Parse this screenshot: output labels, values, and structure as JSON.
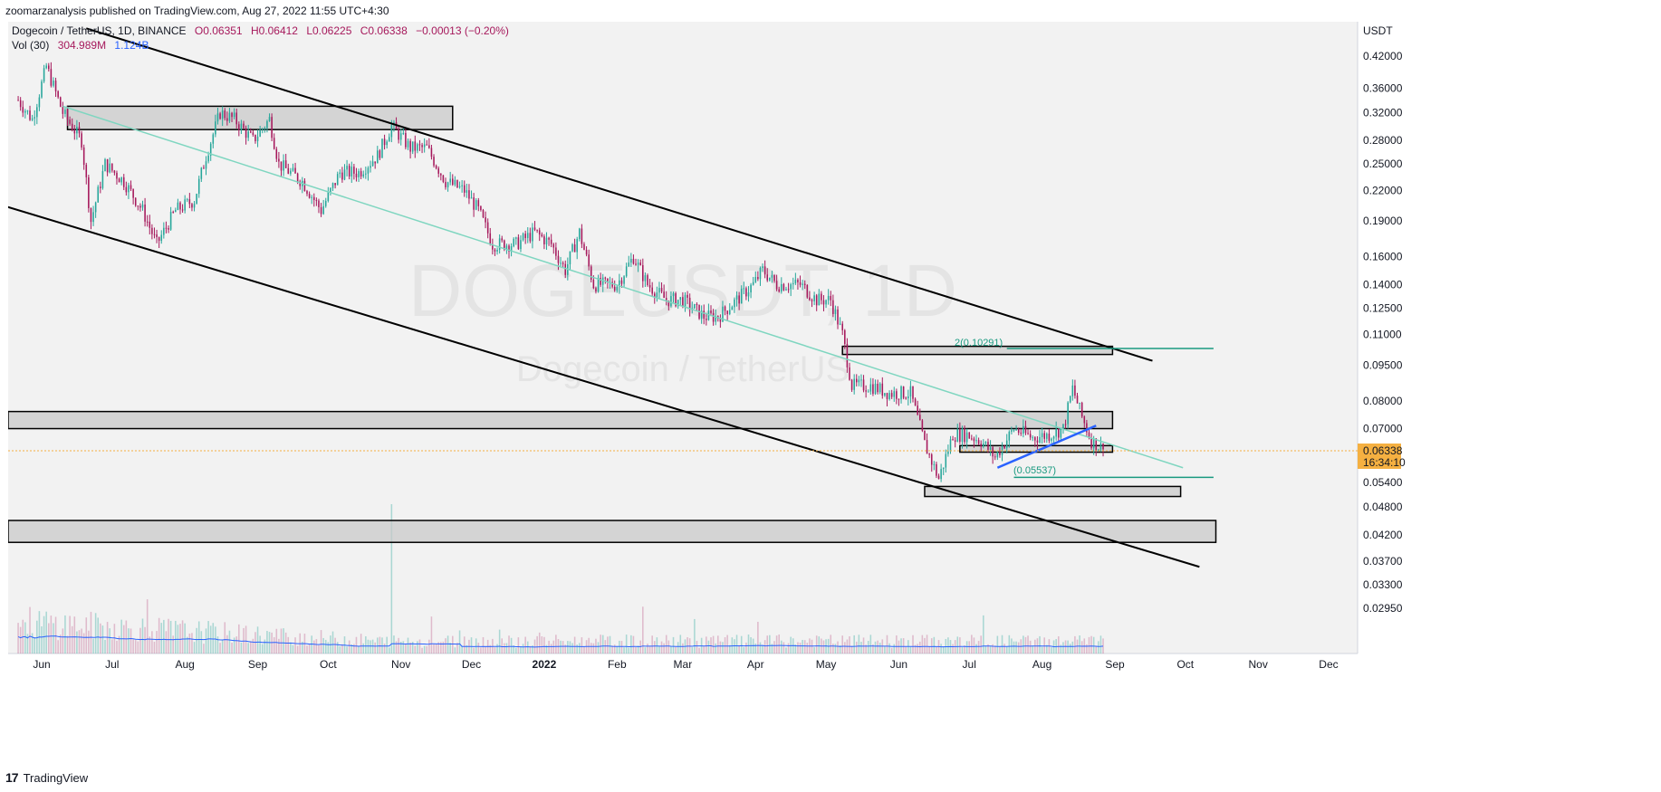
{
  "header": {
    "published_by": "zoomarzanalysis published on TradingView.com, Aug 27, 2022 11:55 UTC+4:30"
  },
  "legend": {
    "symbol": "Dogecoin / TetherUS, 1D, BINANCE",
    "o": "O0.06351",
    "h": "H0.06412",
    "l": "L0.06225",
    "c": "C0.06338",
    "chg": "−0.00013 (−0.20%)",
    "vol_label": "Vol (30)",
    "vol_value": "304.989M",
    "vol_ma": "1.124B"
  },
  "watermark": {
    "line1": "DOGEUSDT, 1D",
    "line2": "Dogecoin / TetherUS"
  },
  "price_axis": {
    "unit": "USDT",
    "last_price": "0.06338",
    "countdown": "16:34:10"
  },
  "annotations": {
    "target": "2(0.10291)",
    "support": "(0.05537)"
  },
  "footer": {
    "brand": "TradingView",
    "logo": "17"
  },
  "colors": {
    "up": "#26a69a",
    "down": "#a6195c",
    "channel": "#000000",
    "midline": "#7fd6c0",
    "trend_blue": "#2962ff",
    "vol_ma": "#2962ff",
    "target_line": "#1a9a80",
    "price_badge": "#f5b041"
  },
  "chart_data": {
    "type": "candlestick",
    "symbol": "DOGEUSDT",
    "timeframe": "1D",
    "y_scale": "log",
    "y_ticks": [
      "0.42000",
      "0.36000",
      "0.32000",
      "0.28000",
      "0.25000",
      "0.22000",
      "0.19000",
      "0.16000",
      "0.14000",
      "0.12500",
      "0.11000",
      "0.09500",
      "0.08000",
      "0.07000",
      "0.05400",
      "0.04800",
      "0.04200",
      "0.03700",
      "0.03300",
      "0.02950"
    ],
    "x_ticks": [
      "Jun",
      "Jul",
      "Aug",
      "Sep",
      "Oct",
      "Nov",
      "Dec",
      "2022",
      "Feb",
      "Mar",
      "Apr",
      "May",
      "Jun",
      "Jul",
      "Aug",
      "Sep",
      "Oct",
      "Nov",
      "Dec"
    ],
    "ylim": [
      0.0275,
      0.48
    ],
    "price_path": [
      [
        "2021-05-22",
        0.34
      ],
      [
        "2021-05-28",
        0.31
      ],
      [
        "2021-06-03",
        0.4
      ],
      [
        "2021-06-10",
        0.32
      ],
      [
        "2021-06-18",
        0.28
      ],
      [
        "2021-06-22",
        0.19
      ],
      [
        "2021-06-28",
        0.25
      ],
      [
        "2021-07-06",
        0.23
      ],
      [
        "2021-07-14",
        0.2
      ],
      [
        "2021-07-20",
        0.17
      ],
      [
        "2021-07-28",
        0.2
      ],
      [
        "2021-08-05",
        0.21
      ],
      [
        "2021-08-10",
        0.26
      ],
      [
        "2021-08-16",
        0.32
      ],
      [
        "2021-08-22",
        0.31
      ],
      [
        "2021-08-30",
        0.28
      ],
      [
        "2021-09-06",
        0.31
      ],
      [
        "2021-09-10",
        0.25
      ],
      [
        "2021-09-20",
        0.23
      ],
      [
        "2021-09-28",
        0.2
      ],
      [
        "2021-10-06",
        0.24
      ],
      [
        "2021-10-14",
        0.24
      ],
      [
        "2021-10-22",
        0.26
      ],
      [
        "2021-10-28",
        0.3
      ],
      [
        "2021-11-05",
        0.27
      ],
      [
        "2021-11-12",
        0.27
      ],
      [
        "2021-11-20",
        0.23
      ],
      [
        "2021-11-28",
        0.22
      ],
      [
        "2021-12-04",
        0.2
      ],
      [
        "2021-12-10",
        0.17
      ],
      [
        "2021-12-20",
        0.17
      ],
      [
        "2021-12-28",
        0.18
      ],
      [
        "2022-01-04",
        0.17
      ],
      [
        "2022-01-10",
        0.15
      ],
      [
        "2022-01-16",
        0.18
      ],
      [
        "2022-01-22",
        0.14
      ],
      [
        "2022-02-01",
        0.14
      ],
      [
        "2022-02-08",
        0.16
      ],
      [
        "2022-02-14",
        0.14
      ],
      [
        "2022-02-22",
        0.13
      ],
      [
        "2022-03-01",
        0.13
      ],
      [
        "2022-03-10",
        0.12
      ],
      [
        "2022-03-16",
        0.12
      ],
      [
        "2022-03-24",
        0.13
      ],
      [
        "2022-03-31",
        0.14
      ],
      [
        "2022-04-04",
        0.15
      ],
      [
        "2022-04-10",
        0.14
      ],
      [
        "2022-04-20",
        0.14
      ],
      [
        "2022-04-27",
        0.13
      ],
      [
        "2022-05-03",
        0.13
      ],
      [
        "2022-05-08",
        0.11
      ],
      [
        "2022-05-12",
        0.086
      ],
      [
        "2022-05-20",
        0.086
      ],
      [
        "2022-05-28",
        0.083
      ],
      [
        "2022-06-06",
        0.083
      ],
      [
        "2022-06-12",
        0.065
      ],
      [
        "2022-06-18",
        0.055
      ],
      [
        "2022-06-24",
        0.068
      ],
      [
        "2022-06-30",
        0.068
      ],
      [
        "2022-07-06",
        0.066
      ],
      [
        "2022-07-12",
        0.061
      ],
      [
        "2022-07-20",
        0.07
      ],
      [
        "2022-07-28",
        0.067
      ],
      [
        "2022-08-04",
        0.068
      ],
      [
        "2022-08-10",
        0.07
      ],
      [
        "2022-08-14",
        0.085
      ],
      [
        "2022-08-18",
        0.074
      ],
      [
        "2022-08-22",
        0.066
      ],
      [
        "2022-08-27",
        0.06338
      ]
    ],
    "zones": [
      {
        "from": "2021-06-12",
        "to": "2021-11-23",
        "low": 0.295,
        "high": 0.33
      },
      {
        "from": "2021-05-08",
        "to": "2022-08-31",
        "low": 0.07,
        "high": 0.076
      },
      {
        "from": "2022-06-27",
        "to": "2022-08-31",
        "low": 0.0625,
        "high": 0.0645
      },
      {
        "from": "2022-05-08",
        "to": "2022-08-31",
        "low": 0.1,
        "high": 0.104
      },
      {
        "from": "2022-06-12",
        "to": "2022-09-29",
        "low": 0.0505,
        "high": 0.053
      },
      {
        "from": "2021-05-08",
        "to": "2022-10-14",
        "low": 0.0405,
        "high": 0.045
      }
    ],
    "channel_lines": [
      {
        "from": [
          "2021-06-20",
          0.48
        ],
        "to": [
          "2022-09-17",
          0.097
        ]
      },
      {
        "from": [
          "2021-05-08",
          0.21
        ],
        "to": [
          "2022-10-07",
          0.036
        ]
      }
    ],
    "midline": {
      "from": [
        "2021-06-10",
        0.33
      ],
      "to": [
        "2022-09-30",
        0.058
      ]
    },
    "trend_line": {
      "from": [
        "2022-07-13",
        0.058
      ],
      "to": [
        "2022-08-24",
        0.071
      ]
    },
    "levels": [
      {
        "label": "2(0.10291)",
        "value": 0.10291,
        "from": "2022-07-17",
        "to": "2022-10-13"
      },
      {
        "label": "(0.05537)",
        "value": 0.05537,
        "from": "2022-07-20",
        "to": "2022-10-13"
      }
    ],
    "last_close": 0.06338
  }
}
